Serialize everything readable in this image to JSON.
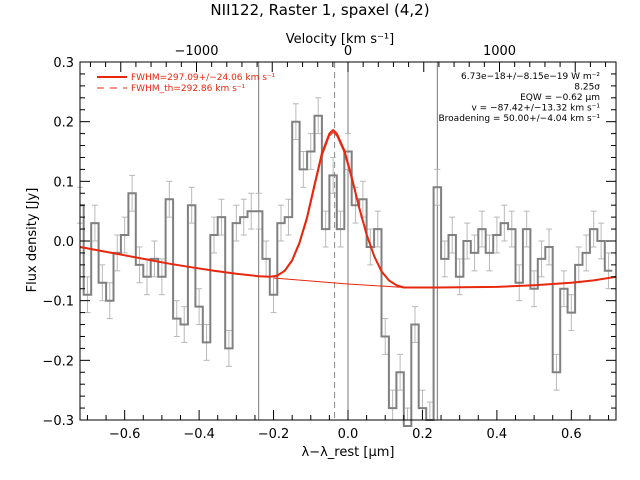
{
  "chart_data": {
    "type": "line",
    "title": "NII122, Raster 1, spaxel (4,2)",
    "xlabel": "λ−λ_rest [μm]",
    "ylabel": "Flux density [Jy]",
    "top_xlabel": "Velocity [km s⁻¹]",
    "xlim": [
      -0.72,
      0.72
    ],
    "ylim": [
      -0.3,
      0.3
    ],
    "velocity_lim": [
      -1769,
      1769
    ],
    "x_ticks": [
      -0.6,
      -0.4,
      -0.2,
      0.0,
      0.2,
      0.4,
      0.6
    ],
    "x_tick_labels": [
      "−0.6",
      "−0.4",
      "−0.2",
      "0.0",
      "0.2",
      "0.4",
      "0.6"
    ],
    "y_ticks": [
      -0.3,
      -0.2,
      -0.1,
      0.0,
      0.1,
      0.2,
      0.3
    ],
    "y_tick_labels": [
      "−0.3",
      "−0.2",
      "−0.1",
      "0.0",
      "0.1",
      "0.2",
      "0.3"
    ],
    "top_ticks": [
      -1000,
      0,
      1000
    ],
    "top_tick_labels": [
      "−1000",
      "0",
      "1000"
    ],
    "vertical_lines": [
      -0.24,
      0.0,
      0.24
    ],
    "dashed_vertical_line": -0.036,
    "legend": {
      "position": "top-left",
      "entries": [
        {
          "label": "FWHM=297.09+/−24.06 km s⁻¹",
          "style": "solid"
        },
        {
          "label": "FWHM_th=292.86 km s⁻¹",
          "style": "dashed"
        }
      ]
    },
    "annotations": [
      "6.73e−18+/−8.15e−19 W m⁻²",
      "8.25σ",
      "EQW = −0.62 μm",
      "v = −87.42+/−13.32 km s⁻¹",
      "Broadening = 50.00+/−4.04 km s⁻¹"
    ],
    "series": [
      {
        "name": "data",
        "style": "histogram",
        "color": "#808080",
        "x": [
          -0.72,
          -0.7,
          -0.68,
          -0.66,
          -0.64,
          -0.62,
          -0.6,
          -0.58,
          -0.56,
          -0.54,
          -0.52,
          -0.5,
          -0.48,
          -0.46,
          -0.44,
          -0.42,
          -0.4,
          -0.38,
          -0.36,
          -0.34,
          -0.32,
          -0.3,
          -0.28,
          -0.26,
          -0.24,
          -0.22,
          -0.2,
          -0.18,
          -0.16,
          -0.14,
          -0.12,
          -0.1,
          -0.08,
          -0.06,
          -0.04,
          -0.02,
          0.0,
          0.02,
          0.04,
          0.06,
          0.08,
          0.1,
          0.12,
          0.14,
          0.16,
          0.18,
          0.2,
          0.22,
          0.24,
          0.26,
          0.28,
          0.3,
          0.32,
          0.34,
          0.36,
          0.38,
          0.4,
          0.42,
          0.44,
          0.46,
          0.48,
          0.5,
          0.52,
          0.54,
          0.56,
          0.58,
          0.6,
          0.62,
          0.64,
          0.66,
          0.68,
          0.7
        ],
        "y": [
          0.06,
          -0.09,
          0.03,
          -0.07,
          -0.1,
          -0.02,
          0.01,
          0.08,
          -0.04,
          -0.06,
          -0.03,
          -0.06,
          0.07,
          -0.13,
          -0.14,
          0.06,
          -0.11,
          -0.17,
          0.01,
          0.04,
          -0.18,
          0.03,
          0.04,
          0.05,
          0.05,
          -0.03,
          -0.09,
          0.03,
          0.04,
          0.2,
          0.12,
          0.15,
          0.21,
          0.02,
          0.11,
          0.02,
          0.15,
          0.06,
          0.07,
          -0.01,
          0.02,
          -0.16,
          -0.28,
          -0.22,
          -0.31,
          -0.14,
          -0.28,
          -0.3,
          0.09,
          -0.03,
          0.01,
          -0.06,
          0.0,
          -0.02,
          0.02,
          -0.02,
          0.01,
          0.03,
          0.02,
          -0.07,
          0.02,
          -0.08,
          -0.03,
          -0.01,
          -0.22,
          -0.08,
          -0.12,
          -0.04,
          -0.02,
          0.02,
          0.0,
          -0.05
        ],
        "yerr": [
          0.03,
          0.03,
          0.03,
          0.03,
          0.03,
          0.03,
          0.03,
          0.03,
          0.03,
          0.03,
          0.03,
          0.03,
          0.03,
          0.03,
          0.03,
          0.03,
          0.03,
          0.03,
          0.03,
          0.03,
          0.03,
          0.03,
          0.03,
          0.03,
          0.03,
          0.03,
          0.03,
          0.03,
          0.03,
          0.03,
          0.03,
          0.03,
          0.03,
          0.03,
          0.03,
          0.03,
          0.03,
          0.03,
          0.03,
          0.03,
          0.03,
          0.03,
          0.03,
          0.03,
          0.03,
          0.03,
          0.03,
          0.03,
          0.03,
          0.03,
          0.03,
          0.03,
          0.03,
          0.03,
          0.03,
          0.03,
          0.03,
          0.03,
          0.03,
          0.03,
          0.03,
          0.03,
          0.03,
          0.03,
          0.03,
          0.03,
          0.03,
          0.03,
          0.03,
          0.03,
          0.03,
          0.03
        ]
      },
      {
        "name": "FWHM=297.09+/−24.06 km s⁻¹",
        "style": "fit",
        "color": "#e8280e",
        "line_width": 2,
        "x": [
          -0.72,
          -0.66,
          -0.6,
          -0.54,
          -0.48,
          -0.42,
          -0.36,
          -0.3,
          -0.24,
          -0.21,
          -0.19,
          -0.17,
          -0.15,
          -0.13,
          -0.11,
          -0.09,
          -0.07,
          -0.05,
          -0.04,
          -0.03,
          -0.01,
          0.01,
          0.03,
          0.05,
          0.07,
          0.09,
          0.11,
          0.13,
          0.15,
          0.24,
          0.4,
          0.5,
          0.6,
          0.66,
          0.72
        ],
        "y": [
          -0.01,
          -0.017,
          -0.024,
          -0.031,
          -0.038,
          -0.044,
          -0.05,
          -0.055,
          -0.059,
          -0.06,
          -0.058,
          -0.05,
          -0.032,
          -0.002,
          0.04,
          0.094,
          0.147,
          0.18,
          0.186,
          0.18,
          0.152,
          0.107,
          0.056,
          0.011,
          -0.025,
          -0.051,
          -0.066,
          -0.074,
          -0.078,
          -0.078,
          -0.077,
          -0.074,
          -0.07,
          -0.066,
          -0.06
        ]
      },
      {
        "name": "continuum",
        "style": "thin",
        "color": "#e8280e",
        "line_width": 1,
        "x": [
          -0.2,
          -0.1,
          0.0,
          0.1,
          0.15
        ],
        "y": [
          -0.062,
          -0.067,
          -0.072,
          -0.076,
          -0.078
        ]
      },
      {
        "name": "FWHM_th=292.86 km s⁻¹",
        "style": "thin",
        "color": "#e8280e",
        "line_width": 1,
        "x": [
          -0.21,
          -0.19,
          -0.17,
          -0.15,
          -0.13,
          -0.11,
          -0.09,
          -0.07,
          -0.05,
          -0.04,
          -0.03,
          -0.01,
          0.01,
          0.03,
          0.05,
          0.07,
          0.09,
          0.11,
          0.13,
          0.15
        ],
        "y": [
          -0.06,
          -0.058,
          -0.051,
          -0.034,
          -0.005,
          0.036,
          0.089,
          0.142,
          0.176,
          0.182,
          0.176,
          0.148,
          0.103,
          0.053,
          0.009,
          -0.026,
          -0.051,
          -0.066,
          -0.074,
          -0.078
        ]
      }
    ]
  }
}
